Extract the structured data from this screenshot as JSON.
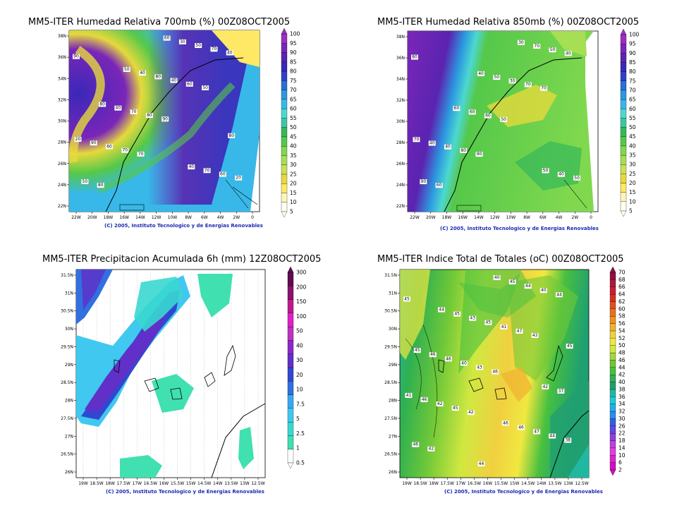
{
  "chart_data": [
    {
      "type": "heatmap",
      "title": "MM5-ITER Humedad Relativa 700mb (%) 00Z08OCT2005",
      "credit": "(C) 2005, Instituto Tecnologico y de Energias Renovables",
      "x_ticks": [
        "22W",
        "20W",
        "18W",
        "16W",
        "14W",
        "12W",
        "10W",
        "8W",
        "6W",
        "4W",
        "2W",
        "0"
      ],
      "y_ticks": [
        "38N",
        "36N",
        "34N",
        "32N",
        "30N",
        "28N",
        "26N",
        "24N",
        "22N"
      ],
      "colorbar_levels": [
        "5",
        "10",
        "15",
        "20",
        "25",
        "30",
        "35",
        "40",
        "45",
        "50",
        "55",
        "60",
        "65",
        "70",
        "75",
        "80",
        "85",
        "90",
        "95",
        "100"
      ],
      "colorbar_colors": [
        "#fffff0",
        "#fff5b8",
        "#ffe866",
        "#e6d93c",
        "#c8e05a",
        "#a6de54",
        "#7fd84e",
        "#55c84a",
        "#35b85a",
        "#3cc8a0",
        "#4cd8d0",
        "#38b8e8",
        "#2c98e0",
        "#2a6fd8",
        "#3040c8",
        "#3a28b8",
        "#5a24b0",
        "#7a26b8",
        "#9b30c0"
      ],
      "contour_labels": [
        "90",
        "70",
        "50",
        "80",
        "90",
        "40",
        "70",
        "60",
        "50",
        "80",
        "70",
        "60",
        "40",
        "20",
        "70",
        "50",
        "90",
        "80",
        "60",
        "40",
        "30",
        "20",
        "40",
        "70",
        "80",
        "60",
        "80",
        "50",
        "40"
      ],
      "grid": true,
      "colorbar_position": "right"
    },
    {
      "type": "heatmap",
      "title": "MM5-ITER Humedad Relativa 850mb (%) 00Z08OCT2005",
      "credit": "(C) 2005, Instituto Tecnologico y de Energias Renovables",
      "x_ticks": [
        "22W",
        "20W",
        "18W",
        "16W",
        "14W",
        "12W",
        "10W",
        "8W",
        "6W",
        "4W",
        "2W",
        "0"
      ],
      "y_ticks": [
        "38N",
        "36N",
        "34N",
        "32N",
        "30N",
        "28N",
        "26N",
        "24N",
        "22N"
      ],
      "colorbar_levels": [
        "5",
        "10",
        "15",
        "20",
        "25",
        "30",
        "35",
        "40",
        "45",
        "50",
        "55",
        "60",
        "65",
        "70",
        "75",
        "80",
        "85",
        "90",
        "95",
        "100"
      ],
      "colorbar_colors": [
        "#fffff0",
        "#fff5b8",
        "#ffe866",
        "#e6d93c",
        "#c8e05a",
        "#a6de54",
        "#7fd84e",
        "#55c84a",
        "#35b85a",
        "#3cc8a0",
        "#4cd8d0",
        "#38b8e8",
        "#2c98e0",
        "#2a6fd8",
        "#3040c8",
        "#3a28b8",
        "#5a24b0",
        "#7a26b8",
        "#9b30c0"
      ],
      "contour_labels": [
        "80",
        "90",
        "70",
        "60",
        "50",
        "40",
        "80",
        "70",
        "90",
        "60",
        "50",
        "40",
        "30",
        "50",
        "60",
        "70",
        "40",
        "50",
        "40",
        "60",
        "30",
        "70",
        "40",
        "50"
      ],
      "grid": true,
      "colorbar_position": "right"
    },
    {
      "type": "heatmap",
      "title": "MM5-ITER Precipitacion Acumulada 6h (mm) 12Z08OCT2005",
      "credit": "(C) 2005, Instituto Tecnologico y de Energias Renovables",
      "x_ticks": [
        "19W",
        "18.5W",
        "18W",
        "17.5W",
        "17W",
        "16.5W",
        "16W",
        "15.5W",
        "15W",
        "14.5W",
        "14W",
        "13.5W",
        "13W",
        "12.5W"
      ],
      "y_ticks": [
        "31.5N",
        "31N",
        "30.5N",
        "30N",
        "29.5N",
        "29N",
        "28.5N",
        "28N",
        "27.5N",
        "27N",
        "26.5N",
        "26N"
      ],
      "colorbar_levels": [
        "0.5",
        "1",
        "2.5",
        "5",
        "7.5",
        "10",
        "20",
        "30",
        "40",
        "50",
        "100",
        "150",
        "200",
        "300"
      ],
      "colorbar_colors": [
        "#ffffff",
        "#40e0b0",
        "#38d8d0",
        "#40c8f0",
        "#38a8f0",
        "#3070e0",
        "#3048d0",
        "#6030c8",
        "#8c28c8",
        "#c030c0",
        "#e020c8",
        "#c01890",
        "#8c1070",
        "#600c50"
      ],
      "grid": true,
      "colorbar_position": "right"
    },
    {
      "type": "heatmap",
      "title": "MM5-ITER Indice Total de Totales (oC) 00Z08OCT2005",
      "credit": "(C) 2005, Instituto Tecnologico y de Energias Renovables",
      "x_ticks": [
        "19W",
        "18.5W",
        "18W",
        "17.5W",
        "17W",
        "16.5W",
        "16W",
        "15.5W",
        "15W",
        "14.5W",
        "14W",
        "13.5W",
        "13W",
        "12.5W"
      ],
      "y_ticks": [
        "31.5N",
        "31N",
        "30.5N",
        "30N",
        "29.5N",
        "29N",
        "28.5N",
        "28N",
        "27.5N",
        "27N",
        "26.5N",
        "26N"
      ],
      "colorbar_levels": [
        "2",
        "6",
        "10",
        "14",
        "18",
        "22",
        "26",
        "30",
        "32",
        "34",
        "36",
        "38",
        "40",
        "42",
        "44",
        "46",
        "48",
        "50",
        "52",
        "54",
        "56",
        "58",
        "60",
        "62",
        "64",
        "66",
        "68",
        "70"
      ],
      "colorbar_colors": [
        "#d010c0",
        "#e020d0",
        "#e040e0",
        "#c040e0",
        "#9040e0",
        "#6048e0",
        "#3060e0",
        "#2890e8",
        "#20b0e8",
        "#20c8d8",
        "#20b8a0",
        "#20a070",
        "#30b050",
        "#48c040",
        "#70c838",
        "#a0d838",
        "#d0e840",
        "#f0e840",
        "#f0d040",
        "#f0b030",
        "#f09020",
        "#e87020",
        "#e05020",
        "#d83020",
        "#c82030",
        "#b01838",
        "#901040"
      ],
      "contour_labels": [
        "45",
        "42",
        "43",
        "42",
        "46",
        "44",
        "45",
        "47",
        "46",
        "43",
        "40",
        "42",
        "41",
        "38",
        "40",
        "44",
        "46",
        "45",
        "44",
        "46",
        "45",
        "41",
        "43",
        "47",
        "46",
        "40",
        "37",
        "45",
        "46",
        "45",
        "44",
        "42",
        "44",
        "46",
        "45"
      ],
      "grid": true,
      "colorbar_position": "right"
    }
  ]
}
